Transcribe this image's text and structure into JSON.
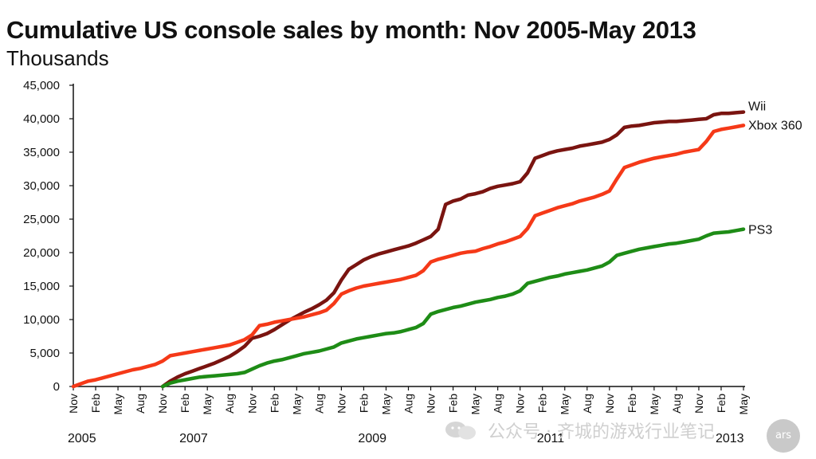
{
  "chart_data": {
    "type": "line",
    "title": "Cumulative US console sales by month: Nov 2005-May 2013",
    "subtitle": "Thousands",
    "ylim": [
      0,
      45000
    ],
    "yticks": [
      0,
      5000,
      10000,
      15000,
      20000,
      25000,
      30000,
      35000,
      40000,
      45000
    ],
    "ytick_labels": [
      "0",
      "5,000",
      "10,000",
      "15,000",
      "20,000",
      "25,000",
      "30,000",
      "35,000",
      "40,000",
      "45,000"
    ],
    "x_start": "Nov 2005",
    "x_end": "May 2013",
    "xtick_labels": [
      "Nov",
      "Feb",
      "May",
      "Aug",
      "Nov",
      "Feb",
      "May",
      "Aug",
      "Nov",
      "Feb",
      "May",
      "Aug",
      "Nov",
      "Feb",
      "May",
      "Aug",
      "Nov",
      "Feb",
      "May",
      "Aug",
      "Nov",
      "Feb",
      "May",
      "Aug",
      "Nov",
      "Feb",
      "May",
      "Aug",
      "Nov",
      "Feb",
      "May"
    ],
    "year_labels": [
      {
        "text": "2005",
        "tick": 0
      },
      {
        "text": "2007",
        "tick": 5
      },
      {
        "text": "2009",
        "tick": 13
      },
      {
        "text": "2011",
        "tick": 21
      },
      {
        "text": "2013",
        "tick": 29
      }
    ],
    "series": [
      {
        "name": "Wii",
        "color": "#7a1410",
        "points": [
          [
            12,
            0
          ],
          [
            13,
            800
          ],
          [
            14,
            1400
          ],
          [
            15,
            1900
          ],
          [
            16,
            2300
          ],
          [
            17,
            2700
          ],
          [
            18,
            3100
          ],
          [
            19,
            3500
          ],
          [
            20,
            4000
          ],
          [
            21,
            4500
          ],
          [
            22,
            5200
          ],
          [
            23,
            6000
          ],
          [
            24,
            7200
          ],
          [
            25,
            7500
          ],
          [
            26,
            7900
          ],
          [
            27,
            8500
          ],
          [
            28,
            9200
          ],
          [
            29,
            9900
          ],
          [
            30,
            10500
          ],
          [
            31,
            11100
          ],
          [
            32,
            11600
          ],
          [
            33,
            12200
          ],
          [
            34,
            12900
          ],
          [
            35,
            14000
          ],
          [
            36,
            15900
          ],
          [
            37,
            17500
          ],
          [
            38,
            18200
          ],
          [
            39,
            18900
          ],
          [
            40,
            19400
          ],
          [
            41,
            19800
          ],
          [
            42,
            20100
          ],
          [
            43,
            20400
          ],
          [
            44,
            20700
          ],
          [
            45,
            21000
          ],
          [
            46,
            21400
          ],
          [
            47,
            21900
          ],
          [
            48,
            22400
          ],
          [
            49,
            23500
          ],
          [
            50,
            27200
          ],
          [
            51,
            27700
          ],
          [
            52,
            28000
          ],
          [
            53,
            28600
          ],
          [
            54,
            28800
          ],
          [
            55,
            29100
          ],
          [
            56,
            29600
          ],
          [
            57,
            29900
          ],
          [
            58,
            30100
          ],
          [
            59,
            30300
          ],
          [
            60,
            30600
          ],
          [
            61,
            31900
          ],
          [
            62,
            34100
          ],
          [
            63,
            34500
          ],
          [
            64,
            34900
          ],
          [
            65,
            35200
          ],
          [
            66,
            35400
          ],
          [
            67,
            35600
          ],
          [
            68,
            35900
          ],
          [
            69,
            36100
          ],
          [
            70,
            36300
          ],
          [
            71,
            36500
          ],
          [
            72,
            36900
          ],
          [
            73,
            37600
          ],
          [
            74,
            38700
          ],
          [
            75,
            38900
          ],
          [
            76,
            39000
          ],
          [
            77,
            39200
          ],
          [
            78,
            39400
          ],
          [
            79,
            39500
          ],
          [
            80,
            39600
          ],
          [
            81,
            39600
          ],
          [
            82,
            39700
          ],
          [
            83,
            39800
          ],
          [
            84,
            39900
          ],
          [
            85,
            40000
          ],
          [
            86,
            40600
          ],
          [
            87,
            40800
          ],
          [
            88,
            40800
          ],
          [
            89,
            40900
          ],
          [
            90,
            41000
          ]
        ]
      },
      {
        "name": "Xbox 360",
        "color": "#f53918",
        "points": [
          [
            0,
            0
          ],
          [
            1,
            400
          ],
          [
            2,
            800
          ],
          [
            3,
            1000
          ],
          [
            4,
            1300
          ],
          [
            5,
            1600
          ],
          [
            6,
            1900
          ],
          [
            7,
            2200
          ],
          [
            8,
            2500
          ],
          [
            9,
            2700
          ],
          [
            10,
            3000
          ],
          [
            11,
            3300
          ],
          [
            12,
            3800
          ],
          [
            13,
            4600
          ],
          [
            14,
            4800
          ],
          [
            15,
            5000
          ],
          [
            16,
            5200
          ],
          [
            17,
            5400
          ],
          [
            18,
            5600
          ],
          [
            19,
            5800
          ],
          [
            20,
            6000
          ],
          [
            21,
            6200
          ],
          [
            22,
            6600
          ],
          [
            23,
            7000
          ],
          [
            24,
            7700
          ],
          [
            25,
            9100
          ],
          [
            26,
            9300
          ],
          [
            27,
            9600
          ],
          [
            28,
            9800
          ],
          [
            29,
            10000
          ],
          [
            30,
            10200
          ],
          [
            31,
            10400
          ],
          [
            32,
            10700
          ],
          [
            33,
            11000
          ],
          [
            34,
            11400
          ],
          [
            35,
            12400
          ],
          [
            36,
            13800
          ],
          [
            37,
            14300
          ],
          [
            38,
            14700
          ],
          [
            39,
            15000
          ],
          [
            40,
            15200
          ],
          [
            41,
            15400
          ],
          [
            42,
            15600
          ],
          [
            43,
            15800
          ],
          [
            44,
            16000
          ],
          [
            45,
            16300
          ],
          [
            46,
            16600
          ],
          [
            47,
            17300
          ],
          [
            48,
            18600
          ],
          [
            49,
            19000
          ],
          [
            50,
            19300
          ],
          [
            51,
            19600
          ],
          [
            52,
            19900
          ],
          [
            53,
            20100
          ],
          [
            54,
            20200
          ],
          [
            55,
            20600
          ],
          [
            56,
            20900
          ],
          [
            57,
            21300
          ],
          [
            58,
            21600
          ],
          [
            59,
            22000
          ],
          [
            60,
            22400
          ],
          [
            61,
            23600
          ],
          [
            62,
            25500
          ],
          [
            63,
            25900
          ],
          [
            64,
            26300
          ],
          [
            65,
            26700
          ],
          [
            66,
            27000
          ],
          [
            67,
            27300
          ],
          [
            68,
            27700
          ],
          [
            69,
            28000
          ],
          [
            70,
            28300
          ],
          [
            71,
            28700
          ],
          [
            72,
            29200
          ],
          [
            73,
            31000
          ],
          [
            74,
            32700
          ],
          [
            75,
            33100
          ],
          [
            76,
            33500
          ],
          [
            77,
            33800
          ],
          [
            78,
            34100
          ],
          [
            79,
            34300
          ],
          [
            80,
            34500
          ],
          [
            81,
            34700
          ],
          [
            82,
            35000
          ],
          [
            83,
            35200
          ],
          [
            84,
            35400
          ],
          [
            85,
            36600
          ],
          [
            86,
            38100
          ],
          [
            87,
            38400
          ],
          [
            88,
            38600
          ],
          [
            89,
            38800
          ],
          [
            90,
            39000
          ]
        ]
      },
      {
        "name": "PS3",
        "color": "#1e8c16",
        "points": [
          [
            12,
            0
          ],
          [
            13,
            500
          ],
          [
            14,
            800
          ],
          [
            15,
            1000
          ],
          [
            16,
            1200
          ],
          [
            17,
            1400
          ],
          [
            18,
            1500
          ],
          [
            19,
            1600
          ],
          [
            20,
            1700
          ],
          [
            21,
            1800
          ],
          [
            22,
            1900
          ],
          [
            23,
            2100
          ],
          [
            24,
            2600
          ],
          [
            25,
            3100
          ],
          [
            26,
            3500
          ],
          [
            27,
            3800
          ],
          [
            28,
            4000
          ],
          [
            29,
            4300
          ],
          [
            30,
            4600
          ],
          [
            31,
            4900
          ],
          [
            32,
            5100
          ],
          [
            33,
            5300
          ],
          [
            34,
            5600
          ],
          [
            35,
            5900
          ],
          [
            36,
            6500
          ],
          [
            37,
            6800
          ],
          [
            38,
            7100
          ],
          [
            39,
            7300
          ],
          [
            40,
            7500
          ],
          [
            41,
            7700
          ],
          [
            42,
            7900
          ],
          [
            43,
            8000
          ],
          [
            44,
            8200
          ],
          [
            45,
            8500
          ],
          [
            46,
            8800
          ],
          [
            47,
            9400
          ],
          [
            48,
            10800
          ],
          [
            49,
            11200
          ],
          [
            50,
            11500
          ],
          [
            51,
            11800
          ],
          [
            52,
            12000
          ],
          [
            53,
            12300
          ],
          [
            54,
            12600
          ],
          [
            55,
            12800
          ],
          [
            56,
            13000
          ],
          [
            57,
            13300
          ],
          [
            58,
            13500
          ],
          [
            59,
            13800
          ],
          [
            60,
            14300
          ],
          [
            61,
            15400
          ],
          [
            62,
            15700
          ],
          [
            63,
            16000
          ],
          [
            64,
            16300
          ],
          [
            65,
            16500
          ],
          [
            66,
            16800
          ],
          [
            67,
            17000
          ],
          [
            68,
            17200
          ],
          [
            69,
            17400
          ],
          [
            70,
            17700
          ],
          [
            71,
            18000
          ],
          [
            72,
            18600
          ],
          [
            73,
            19600
          ],
          [
            74,
            19900
          ],
          [
            75,
            20200
          ],
          [
            76,
            20500
          ],
          [
            77,
            20700
          ],
          [
            78,
            20900
          ],
          [
            79,
            21100
          ],
          [
            80,
            21300
          ],
          [
            81,
            21400
          ],
          [
            82,
            21600
          ],
          [
            83,
            21800
          ],
          [
            84,
            22000
          ],
          [
            85,
            22500
          ],
          [
            86,
            22900
          ],
          [
            87,
            23000
          ],
          [
            88,
            23100
          ],
          [
            89,
            23300
          ],
          [
            90,
            23500
          ]
        ]
      }
    ]
  },
  "watermark": {
    "text": "公众号 · 齐城的游戏行业笔记",
    "badge": "ars"
  }
}
